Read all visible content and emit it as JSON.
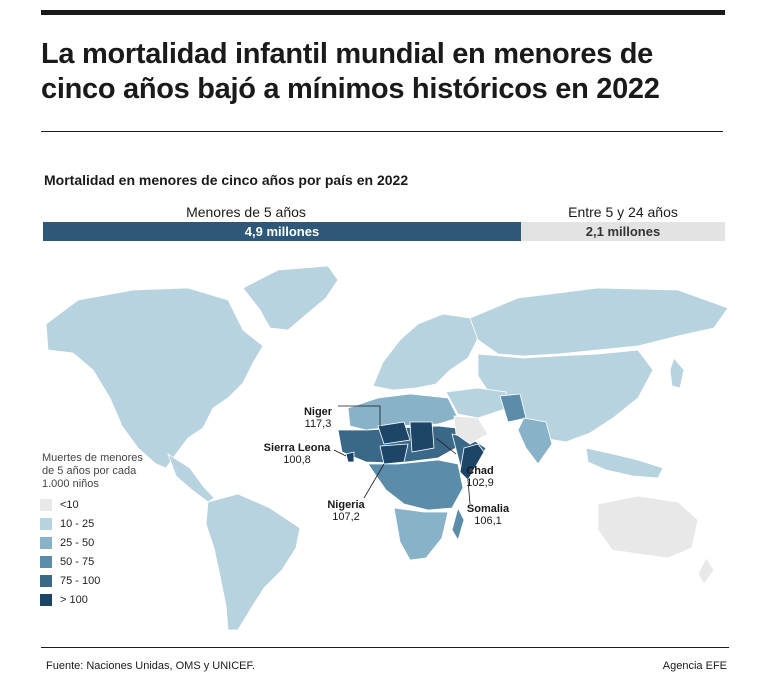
{
  "header": {
    "title_line1": "La mortalidad infantil mundial en menores de",
    "title_line2": "cinco años bajó a mínimos históricos en 2022"
  },
  "subtitle": "Mortalidad en menores de cinco años por país en 2022",
  "deaths_bar": {
    "segments": [
      {
        "label": "Menores de 5 años",
        "value_text": "4,9 millones",
        "value": 4.9,
        "color": "#2d5879"
      },
      {
        "label": "Entre 5 y 24 años",
        "value_text": "2,1 millones",
        "value": 2.1,
        "color": "#e3e3e3"
      }
    ]
  },
  "legend": {
    "title_lines": [
      "Muertes de menores",
      "de 5 años por cada",
      "1.000 niños"
    ],
    "items": [
      {
        "label": "<10",
        "color": "#e8e8e8"
      },
      {
        "label": "10 - 25",
        "color": "#b8d3e0"
      },
      {
        "label": "25 - 50",
        "color": "#88b2c7"
      },
      {
        "label": "50 - 75",
        "color": "#5b8ca9"
      },
      {
        "label": "75 - 100",
        "color": "#3a6888"
      },
      {
        "label": "> 100",
        "color": "#1d4568"
      }
    ]
  },
  "callouts": [
    {
      "country": "Niger",
      "value": "117,3"
    },
    {
      "country": "Sierra Leona",
      "value": "100,8"
    },
    {
      "country": "Chad",
      "value": "102,9"
    },
    {
      "country": "Nigeria",
      "value": "107,2"
    },
    {
      "country": "Somalia",
      "value": "106,1"
    }
  ],
  "footer": {
    "source": "Fuente: Naciones Unidas, OMS y UNICEF.",
    "agency": "Agencia EFE"
  },
  "colors": {
    "ocean": "#ffffff",
    "accent": "#2d5879",
    "text": "#1a1a1a"
  }
}
